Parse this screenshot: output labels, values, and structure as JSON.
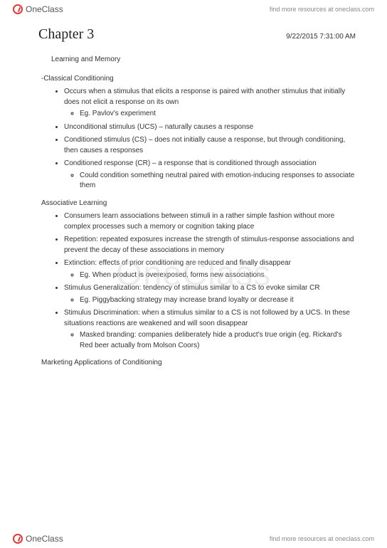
{
  "brand": "OneClass",
  "resource_text": "find more resources at oneclass.com",
  "chapter_title": "Chapter 3",
  "timestamp": "9/22/2015 7:31:00 AM",
  "topic": "Learning and Memory",
  "watermark": "OneClass",
  "sections": {
    "classical": {
      "label": "-Classical Conditioning",
      "b1": "Occurs when a stimulus that elicits a response is paired with another stimulus that initially does not elicit a response on its own",
      "b1_sub": "Eg. Pavlov's experiment",
      "b2": "Unconditional stimulus (UCS) – naturally causes a response",
      "b3": "Conditioned stimulus (CS) – does not initially cause a response, but through conditioning, then causes a responses",
      "b4": "Conditioned response (CR) – a response that is conditioned through association",
      "b4_sub": "Could condition something neutral paired with emotion-inducing responses to associate them"
    },
    "assoc": {
      "label": "Associative Learning",
      "b1": "Consumers learn associations between stimuli in a rather simple fashion without more complex processes such a memory or cognition taking place",
      "b2": "Repetition: repeated exposures increase the strength of stimulus-response associations and prevent the decay of these associations in memory",
      "b3": "Extinction: effects of prior conditioning are reduced and finally disappear",
      "b3_sub": "Eg. When product is overexposed, forms new associations",
      "b4": "Stimulus Generalization: tendency of stimulus similar to a CS to evoke similar CR",
      "b4_sub": "Eg. Piggybacking strategy may increase brand loyalty or decrease it",
      "b5": "Stimulus Discrimination: when a stimulus similar to a CS is not followed by a UCS. In these situations reactions are weakened and will soon disappear",
      "b5_sub": "Masked branding: companies deliberately hide a product's true origin (eg. Rickard's Red beer actually from Molson Coors)"
    },
    "marketing": {
      "label": "Marketing Applications of Conditioning"
    }
  }
}
